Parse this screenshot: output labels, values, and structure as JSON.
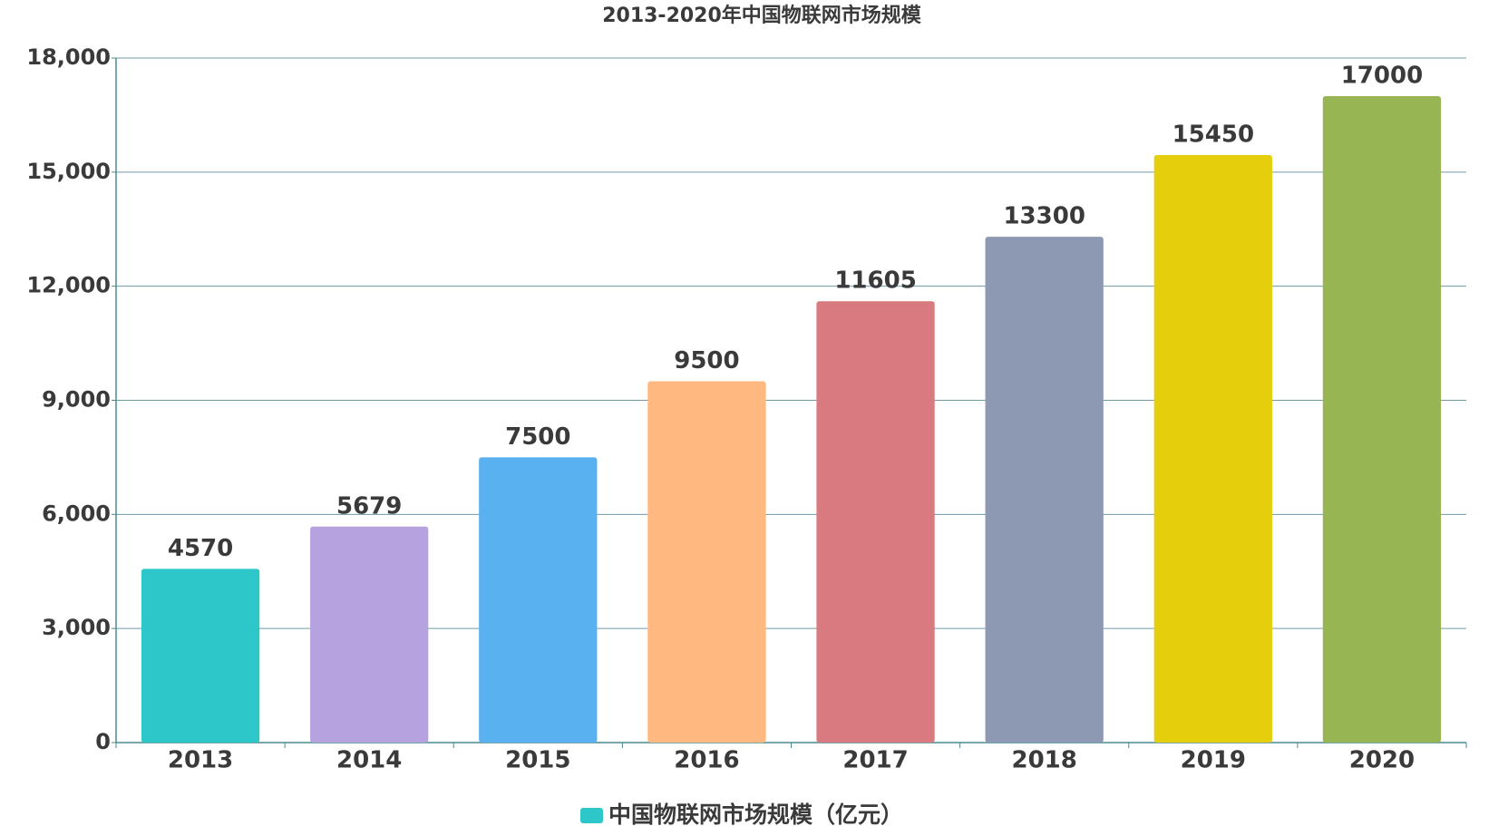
{
  "chart_data": {
    "type": "bar",
    "title": "2013-2020年中国物联网市场规模",
    "categories": [
      "2013",
      "2014",
      "2015",
      "2016",
      "2017",
      "2018",
      "2019",
      "2020"
    ],
    "series": [
      {
        "name": "中国物联网市场规模（亿元）",
        "color": "#2ec7c9",
        "values": [
          4570,
          5679,
          7500,
          9500,
          11605,
          13300,
          15450,
          17000
        ]
      }
    ],
    "bar_colors": [
      "#2ec7c9",
      "#b6a2de",
      "#5ab1ef",
      "#ffb980",
      "#d87a80",
      "#8d98b3",
      "#e5cf0d",
      "#97b552"
    ],
    "ylim": [
      0,
      18000
    ],
    "yticks": [
      0,
      {
        "value": 3000,
        "label": "3,000"
      },
      {
        "value": 6000,
        "label": "6,000"
      },
      {
        "value": 9000,
        "label": "9,000"
      },
      {
        "value": 12000,
        "label": "12,000"
      },
      {
        "value": 15000,
        "label": "15,000"
      },
      {
        "value": 18000,
        "label": "18,000"
      }
    ],
    "grid": true
  }
}
